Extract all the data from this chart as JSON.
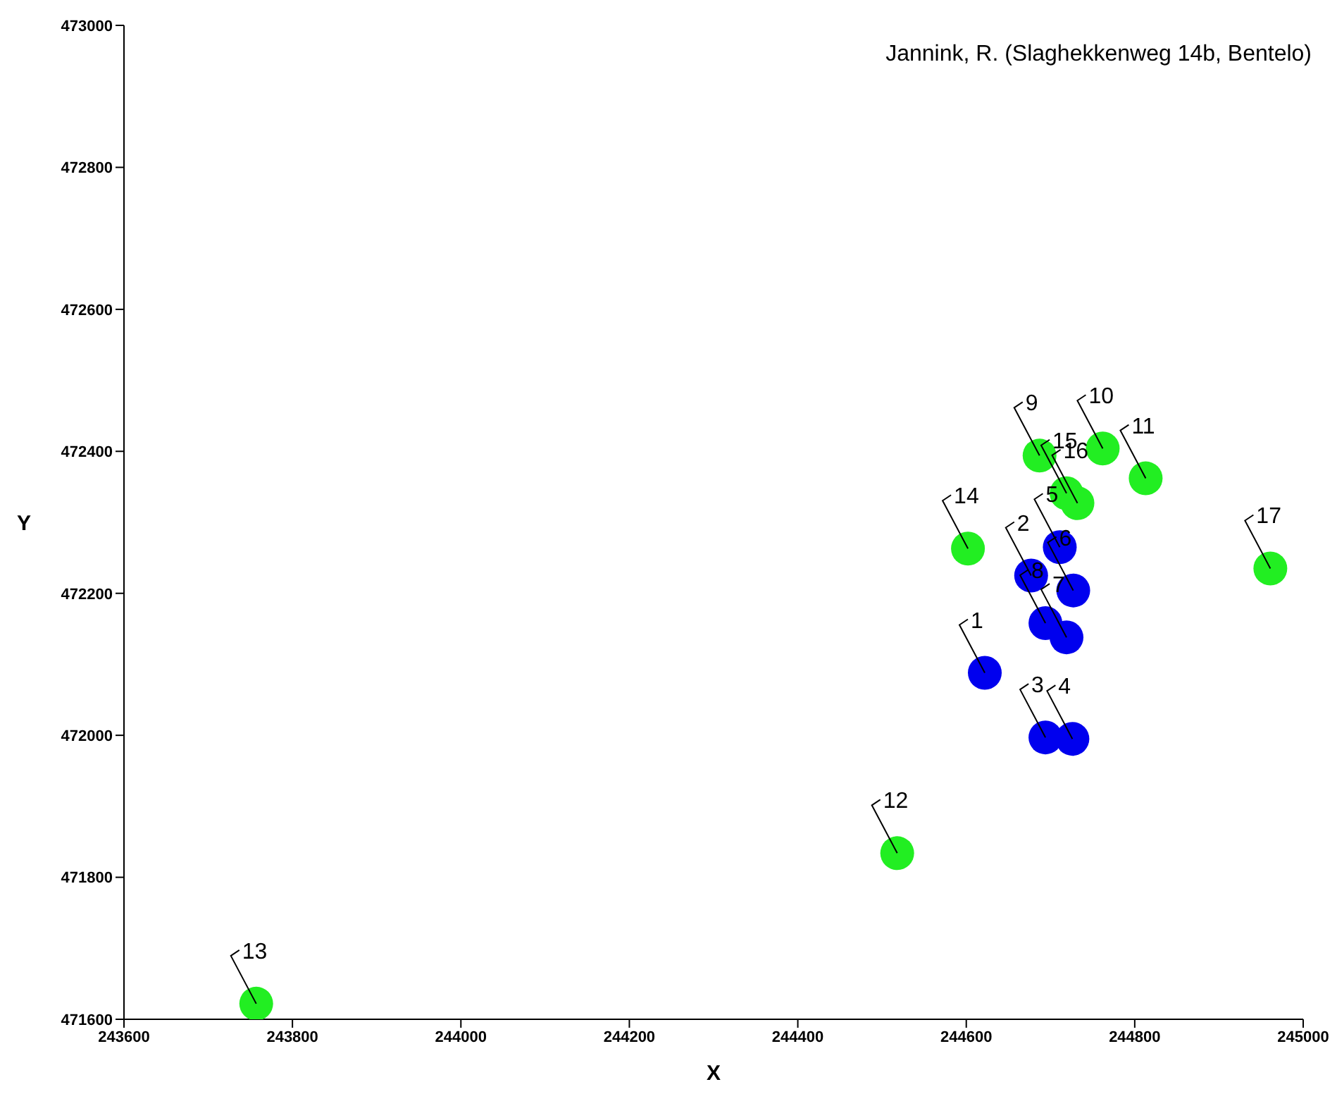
{
  "chart_data": {
    "type": "scatter",
    "title": "Jannink, R. (Slaghekkenweg 14b, Bentelo)",
    "xlabel": "X",
    "ylabel": "Y",
    "series": [
      {
        "color": "#0000ee",
        "x": [
          244622,
          244677,
          244694,
          244726,
          244711,
          244727,
          244719,
          244694
        ],
        "values": [
          472088,
          472225,
          471997,
          471995,
          472265,
          472204,
          472138,
          472158
        ]
      },
      {
        "color": "#22ee22",
        "x": [
          244687,
          244762,
          244813,
          244518,
          243757,
          244602,
          244719,
          244732,
          244961
        ],
        "values": [
          472394,
          472404,
          472362,
          471834,
          471622,
          472263,
          472341,
          472327,
          472235
        ]
      }
    ],
    "annotations": [
      {
        "text": "1",
        "x": 244622,
        "y": 472088
      },
      {
        "text": "2",
        "x": 244677,
        "y": 472225
      },
      {
        "text": "3",
        "x": 244694,
        "y": 471997
      },
      {
        "text": "4",
        "x": 244726,
        "y": 471995
      },
      {
        "text": "5",
        "x": 244711,
        "y": 472265
      },
      {
        "text": "6",
        "x": 244727,
        "y": 472204
      },
      {
        "text": "7",
        "x": 244719,
        "y": 472138
      },
      {
        "text": "8",
        "x": 244694,
        "y": 472158
      },
      {
        "text": "9",
        "x": 244687,
        "y": 472394
      },
      {
        "text": "10",
        "x": 244762,
        "y": 472404
      },
      {
        "text": "11",
        "x": 244813,
        "y": 472362
      },
      {
        "text": "12",
        "x": 244518,
        "y": 471834
      },
      {
        "text": "13",
        "x": 243757,
        "y": 471622
      },
      {
        "text": "14",
        "x": 244602,
        "y": 472263
      },
      {
        "text": "15",
        "x": 244719,
        "y": 472341
      },
      {
        "text": "16",
        "x": 244732,
        "y": 472327
      },
      {
        "text": "17",
        "x": 244961,
        "y": 472235
      }
    ],
    "xlim": [
      243600,
      245000
    ],
    "xticks": [
      243600,
      243800,
      244000,
      244200,
      244400,
      244600,
      244800,
      245000
    ],
    "ylim": [
      471600,
      473000
    ],
    "yticks": [
      471600,
      471800,
      472000,
      472200,
      472400,
      472600,
      472800,
      473000
    ],
    "grid": false,
    "marker": "circle"
  }
}
